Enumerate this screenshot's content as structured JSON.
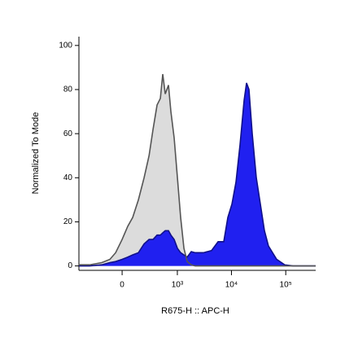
{
  "chart_data": {
    "type": "area",
    "x_label": "R675-H :: APC-H",
    "y_label": "Normalized To Mode",
    "xscale": "biexponential",
    "x": [
      -590,
      -361,
      -189,
      -105,
      -54,
      0,
      47,
      90,
      145,
      208,
      273,
      334,
      405,
      472,
      526,
      588,
      679,
      755,
      871,
      1003,
      1152,
      1327,
      1525,
      1814,
      2153,
      3047,
      4306,
      5680,
      7220,
      8580,
      10200,
      12120,
      14400,
      17100,
      18970,
      21030,
      24150,
      28700,
      34100,
      40500,
      48100,
      67900,
      96000,
      135600,
      227600,
      356000
    ],
    "series": [
      {
        "color": "#dcdcdc",
        "line_color": "#555555",
        "values": [
          0.5,
          0.5,
          1.5,
          3,
          6,
          12,
          18,
          22,
          30,
          40,
          50,
          62,
          73,
          76,
          87,
          78,
          82,
          70,
          58,
          40,
          22,
          8,
          2,
          0.5,
          0,
          0,
          0,
          0,
          0,
          0,
          0,
          0,
          0,
          0,
          0,
          0,
          0,
          0,
          0,
          0,
          0,
          0,
          0,
          0,
          0,
          0
        ]
      },
      {
        "color": "#2020f0",
        "line_color": "#10108a",
        "values": [
          0,
          0,
          0.5,
          1.5,
          2,
          3,
          4,
          5,
          6,
          10,
          12,
          12,
          14,
          14,
          15,
          16,
          16,
          14,
          12,
          8,
          6,
          5,
          4,
          6.5,
          6,
          6,
          7,
          11,
          11,
          22,
          28,
          38,
          55,
          75,
          83,
          80,
          60,
          40,
          28,
          16,
          9,
          3,
          0.5,
          0,
          0,
          0
        ]
      }
    ],
    "xlim": [
      -590,
      356000
    ],
    "xticks": [
      0,
      {
        "value": 1000,
        "label": "10³"
      },
      {
        "value": 10000,
        "label": "10⁴"
      },
      {
        "value": 100000,
        "label": "10⁵"
      }
    ],
    "ylim": [
      -2,
      104
    ],
    "yticks": [
      0,
      20,
      40,
      60,
      80,
      100
    ]
  }
}
